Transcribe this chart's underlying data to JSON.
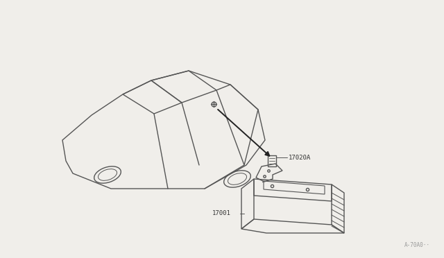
{
  "background_color": "#f0eeea",
  "line_color": "#555555",
  "label_17020A": "17020A",
  "label_17001": "17001",
  "label_bottom_right": "A-70A0··",
  "arrow_color": "#222222",
  "text_color": "#333333",
  "line_width": 1.0,
  "fig_width": 6.4,
  "fig_height": 3.72,
  "dpi": 100
}
